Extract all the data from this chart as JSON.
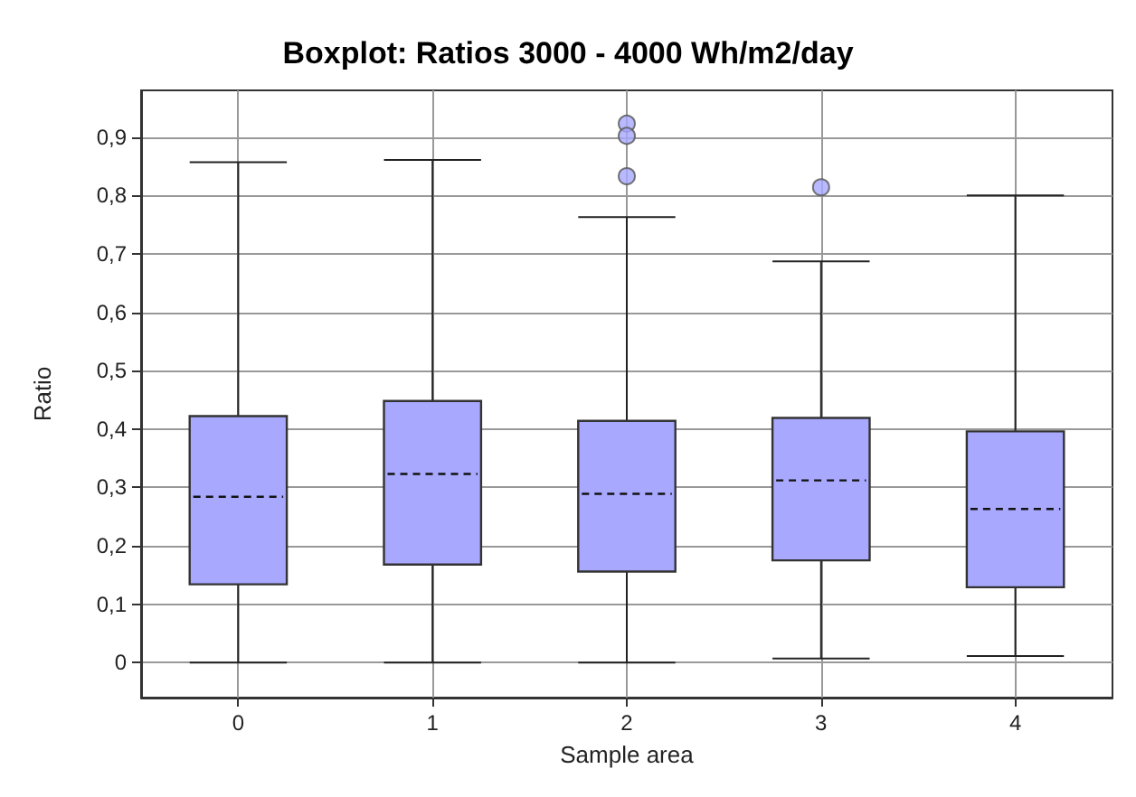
{
  "chart_data": {
    "type": "box",
    "title": "Boxplot: Ratios 3000 - 4000 Wh/m2/day",
    "xlabel": "Sample area",
    "ylabel": "Ratio",
    "categories": [
      "0",
      "1",
      "2",
      "3",
      "4"
    ],
    "boxes": [
      {
        "low": 0,
        "q1": 0.134,
        "median": 0.284,
        "q3": 0.422,
        "high": 0.857
      },
      {
        "low": 0,
        "q1": 0.168,
        "median": 0.323,
        "q3": 0.448,
        "high": 0.861
      },
      {
        "low": 0,
        "q1": 0.156,
        "median": 0.289,
        "q3": 0.414,
        "high": 0.763,
        "outliers": [
          0.923,
          0.902,
          0.833
        ]
      },
      {
        "low": 0.007,
        "q1": 0.175,
        "median": 0.312,
        "q3": 0.419,
        "high": 0.687,
        "outliers": [
          0.814
        ]
      },
      {
        "low": 0.011,
        "q1": 0.129,
        "median": 0.263,
        "q3": 0.396,
        "high": 0.8
      }
    ],
    "color": "#a8a8ff",
    "ylim": [
      -0.06,
      0.98
    ],
    "yticks": [
      0,
      {
        "value": 0.1,
        "label": "0,1"
      },
      {
        "value": 0.2,
        "label": "0,2"
      },
      {
        "value": 0.3,
        "label": "0,3"
      },
      {
        "value": 0.4,
        "label": "0,4"
      },
      {
        "value": 0.5,
        "label": "0,5"
      },
      {
        "value": 0.6,
        "label": "0,6"
      },
      {
        "value": 0.7,
        "label": "0,7"
      },
      {
        "value": 0.8,
        "label": "0,8"
      },
      {
        "value": 0.9,
        "label": "0,9"
      }
    ],
    "grid": true,
    "marker": "circle"
  }
}
